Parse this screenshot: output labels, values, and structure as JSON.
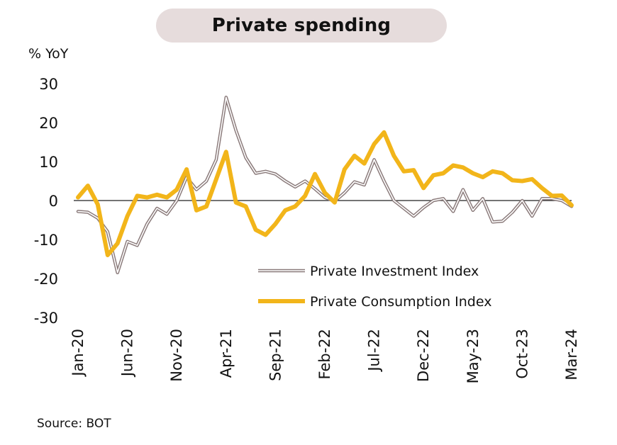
{
  "source": "Source: BOT",
  "chart_data": {
    "type": "line",
    "title": "Private spending",
    "ylabel": "% YoY",
    "xlabel": "",
    "ylim": [
      -30,
      30
    ],
    "yticks": [
      30,
      20,
      10,
      0,
      -10,
      -20,
      -30
    ],
    "xtick_labels": [
      "Jan-20",
      "Jun-20",
      "Nov-20",
      "Apr-21",
      "Sep-21",
      "Feb-22",
      "Jul-22",
      "Dec-22",
      "May-23",
      "Oct-23",
      "Mar-24"
    ],
    "x": [
      "Jan-20",
      "Feb-20",
      "Mar-20",
      "Apr-20",
      "May-20",
      "Jun-20",
      "Jul-20",
      "Aug-20",
      "Sep-20",
      "Oct-20",
      "Nov-20",
      "Dec-20",
      "Jan-21",
      "Feb-21",
      "Mar-21",
      "Apr-21",
      "May-21",
      "Jun-21",
      "Jul-21",
      "Aug-21",
      "Sep-21",
      "Oct-21",
      "Nov-21",
      "Dec-21",
      "Jan-22",
      "Feb-22",
      "Mar-22",
      "Apr-22",
      "May-22",
      "Jun-22",
      "Jul-22",
      "Aug-22",
      "Sep-22",
      "Oct-22",
      "Nov-22",
      "Dec-22",
      "Jan-23",
      "Feb-23",
      "Mar-23",
      "Apr-23",
      "May-23",
      "Jun-23",
      "Jul-23",
      "Aug-23",
      "Sep-23",
      "Oct-23",
      "Nov-23",
      "Dec-23",
      "Jan-24",
      "Feb-24",
      "Mar-24"
    ],
    "legend_position": "center-right",
    "series": [
      {
        "name": "Private Investment Index",
        "color": "#8a7a7a",
        "style": "double-outline",
        "values": [
          -2.8,
          -3,
          -4.5,
          -8,
          -18.5,
          -10.5,
          -11.5,
          -6,
          -2,
          -3.5,
          0,
          6,
          2.8,
          5,
          10.5,
          26.5,
          18,
          11,
          7,
          7.5,
          6.8,
          5,
          3.5,
          5,
          3,
          0.8,
          -0.2,
          2,
          4.8,
          4,
          10.5,
          5,
          0,
          -2,
          -4,
          -1.8,
          0,
          0.5,
          -2.8,
          2.8,
          -2.5,
          0.5,
          -5.5,
          -5.3,
          -3,
          0,
          -4,
          0.5,
          0.5,
          0,
          -1.5
        ]
      },
      {
        "name": "Private Consumption Index",
        "color": "#f2b51a",
        "style": "thick",
        "values": [
          0.8,
          3.8,
          -1,
          -14,
          -11,
          -4,
          1.2,
          0.8,
          1.5,
          0.8,
          2.8,
          8,
          -2.5,
          -1.5,
          5.5,
          12.5,
          -0.5,
          -1.5,
          -7.5,
          -8.8,
          -6,
          -2.5,
          -1.5,
          1.2,
          6.8,
          2,
          -0.5,
          8,
          11.5,
          9.5,
          14.5,
          17.5,
          11.5,
          7.5,
          7.8,
          3.2,
          6.5,
          7,
          9,
          8.5,
          7,
          6,
          7.5,
          7,
          5.2,
          5,
          5.5,
          3.2,
          1.2,
          1.3,
          -1.2
        ]
      }
    ]
  }
}
